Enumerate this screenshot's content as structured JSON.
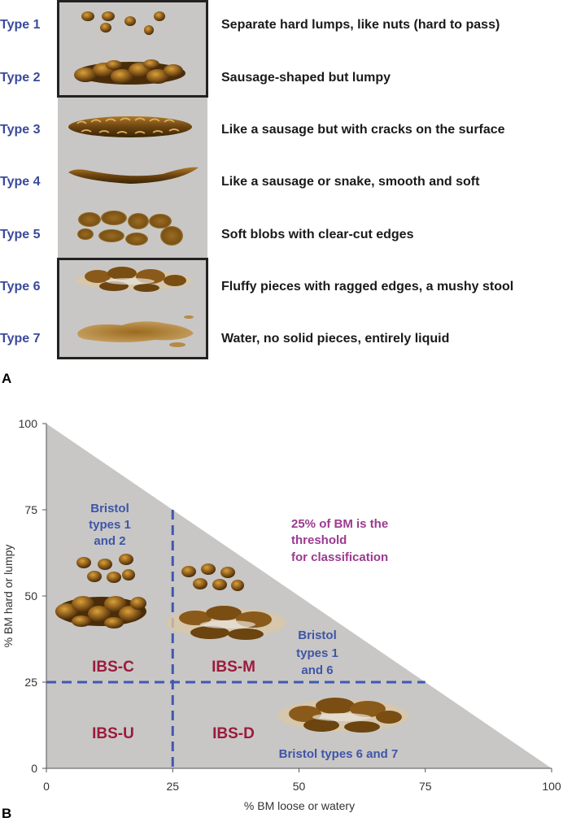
{
  "panel_a": {
    "letter": "A",
    "types": [
      {
        "label": "Type 1",
        "description": "Separate hard lumps, like nuts (hard to pass)"
      },
      {
        "label": "Type 2",
        "description": "Sausage-shaped but lumpy"
      },
      {
        "label": "Type 3",
        "description": "Like a sausage but with cracks on the surface"
      },
      {
        "label": "Type 4",
        "description": "Like a sausage or snake, smooth and soft"
      },
      {
        "label": "Type 5",
        "description": "Soft blobs with clear-cut edges"
      },
      {
        "label": "Type 6",
        "description": "Fluffy pieces with ragged edges, a mushy stool"
      },
      {
        "label": "Type 7",
        "description": "Water, no solid pieces, entirely liquid"
      }
    ]
  },
  "panel_b": {
    "letter": "B",
    "xlabel": "% BM loose or watery",
    "ylabel": "% BM hard or lumpy",
    "x_ticks": [
      "0",
      "25",
      "50",
      "75",
      "100"
    ],
    "y_ticks": [
      "0",
      "25",
      "50",
      "75",
      "100"
    ],
    "quadrants": {
      "c": "IBS-C",
      "m": "IBS-M",
      "u": "IBS-U",
      "d": "IBS-D"
    },
    "annotation_12": [
      "Bristol",
      "types 1",
      "and 2"
    ],
    "annotation_16": [
      "Bristol",
      "types 1",
      "and 6"
    ],
    "annotation_67": "Bristol types 6 and 7",
    "threshold_note": [
      "25% of BM is the",
      "threshold",
      "for classification"
    ]
  },
  "chart_data": {
    "type": "diagram",
    "x_range": [
      0,
      100
    ],
    "y_range": [
      0,
      100
    ],
    "thresholds": {
      "x": 25,
      "y": 25
    },
    "region": "triangle x + y <= 100"
  },
  "colors": {
    "type_label": "#3b4a9a",
    "panel_bg": "#c8c7c5",
    "ibs_text": "#9b1b3c",
    "annotation_blue": "#3f55a8",
    "annotation_purple": "#9b3a8f",
    "dash_line": "#4058b0"
  }
}
